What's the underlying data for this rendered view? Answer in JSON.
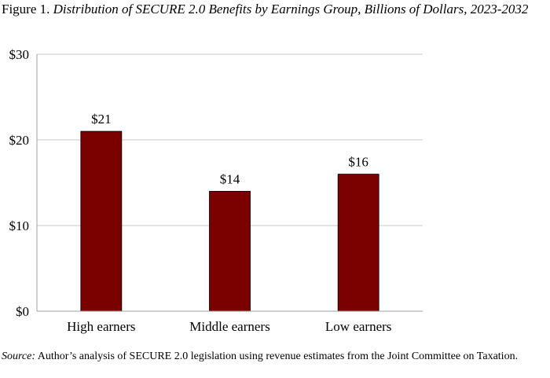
{
  "figure": {
    "label": "Figure 1.",
    "title": "Distribution of SECURE 2.0 Benefits by Earnings Group, Billions of Dollars, 2023-2032"
  },
  "source": {
    "label": "Source:",
    "text": "Author’s analysis of SECURE 2.0 legislation using revenue estimates from the Joint Committee on Taxation."
  },
  "colors": {
    "bar": "#7b0000",
    "grid": "#c8c8c8",
    "axis": "#a0a0a0"
  },
  "chart_data": {
    "type": "bar",
    "title": "Distribution of SECURE 2.0 Benefits by Earnings Group, Billions of Dollars, 2023-2032",
    "categories": [
      "High earners",
      "Middle earners",
      "Low earners"
    ],
    "values": [
      21,
      14,
      16
    ],
    "data_labels": [
      "$21",
      "$14",
      "$16"
    ],
    "yticks": [
      0,
      10,
      20,
      30
    ],
    "ytick_labels": [
      "$0",
      "$10",
      "$20",
      "$30"
    ],
    "ylim": [
      0,
      30
    ],
    "xlabel": "",
    "ylabel": "",
    "grid": true,
    "legend": "none"
  }
}
